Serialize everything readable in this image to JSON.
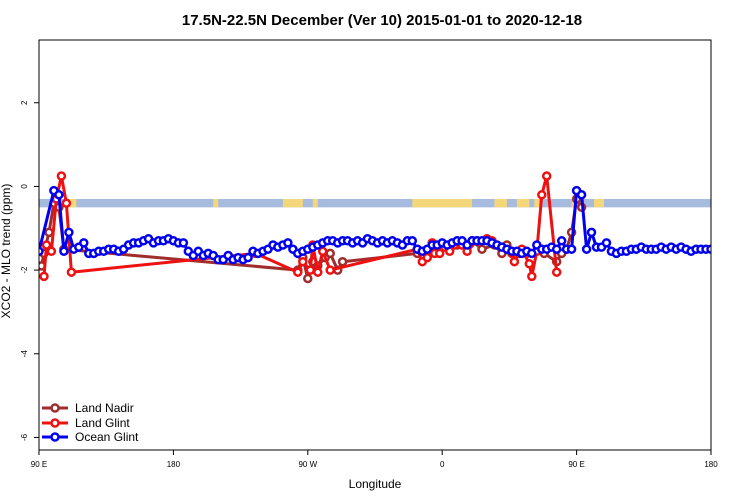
{
  "chart_data": {
    "type": "line",
    "title": "17.5N-22.5N December (Ver 10)   2015-01-01 to 2020-12-18",
    "xlabel": "Longitude",
    "ylabel": "XCO2 - MLO trend (ppm)",
    "xlim": [
      -90,
      180
    ],
    "ylim": [
      -6.3,
      3.5
    ],
    "x_tick_values": [
      -90,
      -36,
      18,
      72,
      126,
      180
    ],
    "x_tick_labels": [
      "90 E",
      "180",
      "90 W",
      "0",
      "90 E",
      "180"
    ],
    "y_tick_values": [
      2,
      0,
      -2,
      -4,
      -6
    ],
    "y_tick_labels": [
      "2",
      "0",
      "-2",
      "-4",
      "-6"
    ],
    "legend_position": "bottom-left",
    "land_ocean_strip": {
      "y_range": [
        -0.5,
        -0.3
      ],
      "ocean_color": "#a6bbdd",
      "land_color": "#f3d77a",
      "land_segments": [
        [
          -84,
          -82
        ],
        [
          -79,
          -75
        ],
        [
          -20,
          -18
        ],
        [
          8,
          16
        ],
        [
          20,
          22
        ],
        [
          60,
          84
        ],
        [
          93,
          98
        ],
        [
          102,
          107
        ],
        [
          109,
          111
        ],
        [
          124,
          127
        ],
        [
          133,
          137
        ]
      ]
    },
    "series": [
      {
        "name": "Land Nadir",
        "color": "#a02c2c",
        "points": [
          [
            -89,
            -1.9
          ],
          [
            -88,
            -1.6
          ],
          [
            -86,
            -1.1
          ],
          [
            -84,
            -0.4
          ],
          [
            -82,
            -0.5
          ],
          [
            -80,
            -1.5
          ],
          [
            14,
            -2.0
          ],
          [
            16,
            -1.7
          ],
          [
            18,
            -2.2
          ],
          [
            20,
            -1.8
          ],
          [
            22,
            -1.9
          ],
          [
            25,
            -1.7
          ],
          [
            27,
            -1.6
          ],
          [
            30,
            -2.0
          ],
          [
            32,
            -1.8
          ],
          [
            62,
            -1.6
          ],
          [
            66,
            -1.5
          ],
          [
            72,
            -1.4
          ],
          [
            76,
            -1.4
          ],
          [
            78,
            -1.4
          ],
          [
            82,
            -1.4
          ],
          [
            84,
            -1.3
          ],
          [
            88,
            -1.5
          ],
          [
            93,
            -1.4
          ],
          [
            96,
            -1.6
          ],
          [
            98,
            -1.4
          ],
          [
            103,
            -1.6
          ],
          [
            106,
            -1.6
          ],
          [
            112,
            -1.5
          ],
          [
            113,
            -1.6
          ],
          [
            118,
            -1.8
          ],
          [
            120,
            -1.6
          ],
          [
            122,
            -1.5
          ],
          [
            124,
            -1.1
          ],
          [
            126,
            -0.3
          ],
          [
            128,
            -0.5
          ]
        ]
      },
      {
        "name": "Land Glint",
        "color": "#ee1111",
        "points": [
          [
            -88,
            -2.15
          ],
          [
            -87,
            -1.4
          ],
          [
            -85,
            -1.55
          ],
          [
            -83,
            -0.3
          ],
          [
            -81,
            0.25
          ],
          [
            -79,
            -0.4
          ],
          [
            -77,
            -2.05
          ],
          [
            -3,
            -1.6
          ],
          [
            14,
            -2.05
          ],
          [
            16,
            -1.8
          ],
          [
            19,
            -2.0
          ],
          [
            20,
            -1.4
          ],
          [
            22,
            -2.05
          ],
          [
            24,
            -1.55
          ],
          [
            27,
            -2.0
          ],
          [
            62,
            -1.5
          ],
          [
            64,
            -1.8
          ],
          [
            66,
            -1.7
          ],
          [
            68,
            -1.35
          ],
          [
            69,
            -1.6
          ],
          [
            71,
            -1.6
          ],
          [
            73,
            -1.45
          ],
          [
            75,
            -1.55
          ],
          [
            77,
            -1.4
          ],
          [
            79,
            -1.35
          ],
          [
            80,
            -1.4
          ],
          [
            82,
            -1.55
          ],
          [
            86,
            -1.3
          ],
          [
            90,
            -1.25
          ],
          [
            92,
            -1.3
          ],
          [
            100,
            -1.6
          ],
          [
            101,
            -1.8
          ],
          [
            104,
            -1.5
          ],
          [
            107,
            -1.85
          ],
          [
            108,
            -2.15
          ],
          [
            110,
            -1.55
          ],
          [
            112,
            -0.2
          ],
          [
            114,
            0.25
          ],
          [
            118,
            -2.05
          ]
        ]
      },
      {
        "name": "Ocean Glint",
        "color": "#0000ee",
        "points": [
          [
            -90,
            -1.55
          ],
          [
            -84,
            -0.1
          ],
          [
            -82,
            -0.2
          ],
          [
            -80,
            -1.55
          ],
          [
            -78,
            -1.1
          ],
          [
            -76,
            -1.5
          ],
          [
            -74,
            -1.45
          ],
          [
            -72,
            -1.35
          ],
          [
            -70,
            -1.6
          ],
          [
            -68,
            -1.6
          ],
          [
            -66,
            -1.55
          ],
          [
            -64,
            -1.55
          ],
          [
            -62,
            -1.5
          ],
          [
            -60,
            -1.5
          ],
          [
            -58,
            -1.55
          ],
          [
            -56,
            -1.5
          ],
          [
            -54,
            -1.4
          ],
          [
            -52,
            -1.35
          ],
          [
            -50,
            -1.35
          ],
          [
            -48,
            -1.3
          ],
          [
            -46,
            -1.25
          ],
          [
            -44,
            -1.35
          ],
          [
            -42,
            -1.3
          ],
          [
            -40,
            -1.3
          ],
          [
            -38,
            -1.25
          ],
          [
            -36,
            -1.3
          ],
          [
            -34,
            -1.35
          ],
          [
            -32,
            -1.35
          ],
          [
            -30,
            -1.55
          ],
          [
            -28,
            -1.65
          ],
          [
            -26,
            -1.55
          ],
          [
            -24,
            -1.65
          ],
          [
            -22,
            -1.6
          ],
          [
            -20,
            -1.65
          ],
          [
            -18,
            -1.75
          ],
          [
            -16,
            -1.75
          ],
          [
            -14,
            -1.65
          ],
          [
            -12,
            -1.75
          ],
          [
            -10,
            -1.7
          ],
          [
            -8,
            -1.75
          ],
          [
            -6,
            -1.7
          ],
          [
            -4,
            -1.55
          ],
          [
            -2,
            -1.6
          ],
          [
            0,
            -1.55
          ],
          [
            2,
            -1.5
          ],
          [
            4,
            -1.4
          ],
          [
            6,
            -1.45
          ],
          [
            8,
            -1.4
          ],
          [
            10,
            -1.35
          ],
          [
            12,
            -1.5
          ],
          [
            14,
            -1.6
          ],
          [
            16,
            -1.55
          ],
          [
            18,
            -1.5
          ],
          [
            20,
            -1.45
          ],
          [
            22,
            -1.4
          ],
          [
            24,
            -1.35
          ],
          [
            26,
            -1.3
          ],
          [
            28,
            -1.3
          ],
          [
            30,
            -1.35
          ],
          [
            32,
            -1.3
          ],
          [
            34,
            -1.3
          ],
          [
            36,
            -1.35
          ],
          [
            38,
            -1.3
          ],
          [
            40,
            -1.35
          ],
          [
            42,
            -1.25
          ],
          [
            44,
            -1.3
          ],
          [
            46,
            -1.35
          ],
          [
            48,
            -1.3
          ],
          [
            50,
            -1.35
          ],
          [
            52,
            -1.3
          ],
          [
            54,
            -1.35
          ],
          [
            56,
            -1.4
          ],
          [
            58,
            -1.3
          ],
          [
            60,
            -1.3
          ],
          [
            62,
            -1.5
          ],
          [
            64,
            -1.55
          ],
          [
            66,
            -1.5
          ],
          [
            68,
            -1.4
          ],
          [
            70,
            -1.4
          ],
          [
            72,
            -1.35
          ],
          [
            74,
            -1.4
          ],
          [
            76,
            -1.35
          ],
          [
            78,
            -1.3
          ],
          [
            80,
            -1.3
          ],
          [
            82,
            -1.4
          ],
          [
            84,
            -1.3
          ],
          [
            86,
            -1.3
          ],
          [
            88,
            -1.3
          ],
          [
            90,
            -1.3
          ],
          [
            92,
            -1.35
          ],
          [
            94,
            -1.4
          ],
          [
            96,
            -1.45
          ],
          [
            98,
            -1.5
          ],
          [
            100,
            -1.55
          ],
          [
            102,
            -1.55
          ],
          [
            104,
            -1.6
          ],
          [
            106,
            -1.55
          ],
          [
            108,
            -1.6
          ],
          [
            110,
            -1.4
          ],
          [
            112,
            -1.5
          ],
          [
            114,
            -1.5
          ],
          [
            116,
            -1.45
          ],
          [
            118,
            -1.5
          ],
          [
            120,
            -1.3
          ],
          [
            122,
            -1.5
          ],
          [
            124,
            -1.5
          ],
          [
            126,
            -0.1
          ],
          [
            128,
            -0.2
          ],
          [
            130,
            -1.5
          ],
          [
            132,
            -1.1
          ],
          [
            134,
            -1.45
          ],
          [
            136,
            -1.45
          ],
          [
            138,
            -1.35
          ],
          [
            140,
            -1.55
          ],
          [
            142,
            -1.6
          ],
          [
            144,
            -1.55
          ],
          [
            146,
            -1.55
          ],
          [
            148,
            -1.5
          ],
          [
            150,
            -1.5
          ],
          [
            152,
            -1.45
          ],
          [
            154,
            -1.5
          ],
          [
            156,
            -1.5
          ],
          [
            158,
            -1.5
          ],
          [
            160,
            -1.45
          ],
          [
            162,
            -1.5
          ],
          [
            164,
            -1.45
          ],
          [
            166,
            -1.5
          ],
          [
            168,
            -1.45
          ],
          [
            170,
            -1.5
          ],
          [
            172,
            -1.55
          ],
          [
            174,
            -1.5
          ],
          [
            176,
            -1.5
          ],
          [
            178,
            -1.5
          ],
          [
            180,
            -1.5
          ]
        ]
      }
    ]
  }
}
